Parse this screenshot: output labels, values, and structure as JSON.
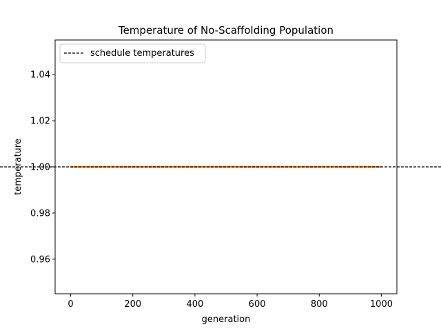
{
  "chart_data": {
    "type": "line",
    "title": "Temperature of No-Scaffolding Population",
    "xlabel": "generation",
    "ylabel": "temperature",
    "xlim": [
      -50,
      1050
    ],
    "ylim": [
      0.945,
      1.055
    ],
    "xticks": [
      0,
      200,
      400,
      600,
      800,
      1000
    ],
    "xtick_labels": [
      "0",
      "200",
      "400",
      "600",
      "800",
      "1000"
    ],
    "yticks": [
      0.96,
      0.98,
      1.0,
      1.02,
      1.04
    ],
    "ytick_labels": [
      "0.96",
      "0.98",
      "1.00",
      "1.02",
      "1.04"
    ],
    "grid": false,
    "legend": {
      "position": "top-left",
      "entries": [
        "schedule temperatures"
      ]
    },
    "series": [
      {
        "x": [
          0,
          1000
        ],
        "values": [
          1.0,
          1.0
        ],
        "color": "#ff7f0e",
        "style": "solid"
      },
      {
        "name": "schedule temperatures",
        "values": [
          1.0
        ],
        "color": "#000000",
        "style": "dashed-horizontal"
      }
    ]
  }
}
